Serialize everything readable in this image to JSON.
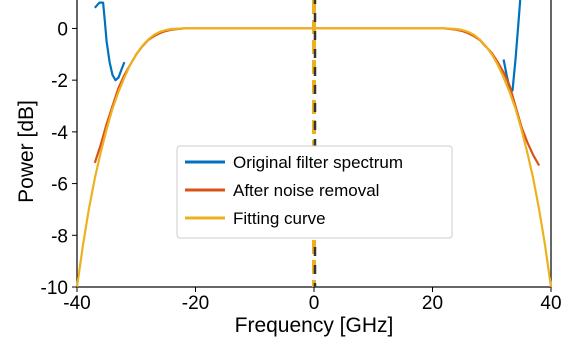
{
  "chart_data": {
    "type": "line",
    "title": "",
    "xlabel": "Frequency [GHz]",
    "ylabel": "Power [dB]",
    "xlim": [
      -40,
      40
    ],
    "ylim": [
      -10,
      1.1
    ],
    "xticks": [
      -40,
      -20,
      0,
      20,
      40
    ],
    "xtick_labels": [
      "-40",
      "-20",
      "0",
      "20",
      "40"
    ],
    "yticks": [
      0,
      -2,
      -4,
      -6,
      -8,
      -10
    ],
    "ytick_labels": [
      "0",
      "-2",
      "-4",
      "-6",
      "-8",
      "-10"
    ],
    "grid": false,
    "legend_position": "center",
    "annotations": [
      {
        "type": "vertical-dashed-line",
        "x": 0,
        "colors": [
          "#EDB120",
          "#333333"
        ]
      }
    ],
    "series": [
      {
        "name": "Original filter spectrum",
        "color": "#0072BD",
        "x": [
          -37.0,
          -36.6,
          -36.2,
          -35.6,
          -35.3,
          -35.0,
          -34.5,
          -34.0,
          -33.5,
          -33.0,
          -32.5,
          -32.0
        ],
        "y": [
          0.8,
          0.9,
          1.0,
          1.0,
          0.3,
          -0.5,
          -1.3,
          -1.8,
          -2.0,
          -1.9,
          -1.6,
          -1.3
        ],
        "x2": [
          32.0,
          32.5,
          33.0,
          33.5,
          34.0,
          34.5,
          34.8
        ],
        "y2": [
          -1.2,
          -1.8,
          -2.3,
          -2.4,
          -1.2,
          0.2,
          1.1
        ]
      },
      {
        "name": "After noise removal",
        "color": "#D95319",
        "x": [
          -37.0,
          -36.0,
          -35.0,
          -34.0,
          -33.0,
          -32.0,
          -31.0,
          -30.0,
          -29.0,
          -28.0,
          -27.0,
          -26.0,
          -25.0,
          -24.0,
          -22.0,
          -20.0,
          0.0,
          20.0,
          22.0,
          24.0,
          25.0,
          26.0,
          27.0,
          28.0,
          29.0,
          30.0,
          31.0,
          32.0,
          33.0,
          34.0,
          35.0,
          36.0,
          37.0,
          38.0
        ],
        "y": [
          -5.2,
          -4.5,
          -3.7,
          -3.0,
          -2.3,
          -1.8,
          -1.4,
          -1.0,
          -0.7,
          -0.45,
          -0.3,
          -0.18,
          -0.1,
          -0.05,
          0.0,
          0.0,
          0.0,
          0.0,
          0.0,
          -0.05,
          -0.1,
          -0.18,
          -0.3,
          -0.45,
          -0.7,
          -0.95,
          -1.3,
          -1.7,
          -2.2,
          -3.0,
          -3.8,
          -4.4,
          -4.9,
          -5.3
        ]
      },
      {
        "name": "Fitting curve",
        "color": "#EDB120",
        "x": [
          -40.0,
          -39.0,
          -38.0,
          -37.0,
          -36.0,
          -35.0,
          -34.0,
          -33.0,
          -32.0,
          -31.0,
          -30.0,
          -29.0,
          -28.0,
          -27.0,
          -26.0,
          -25.0,
          -24.0,
          -22.0,
          -20.0,
          0.0,
          20.0,
          22.0,
          24.0,
          25.0,
          26.0,
          27.0,
          28.0,
          29.0,
          30.0,
          31.0,
          32.0,
          33.0,
          34.0,
          35.0,
          36.0,
          37.0,
          38.0,
          39.0,
          40.0
        ],
        "y": [
          -10.0,
          -8.4,
          -7.0,
          -5.8,
          -4.8,
          -3.9,
          -3.1,
          -2.45,
          -1.9,
          -1.4,
          -1.0,
          -0.68,
          -0.43,
          -0.25,
          -0.13,
          -0.06,
          -0.02,
          0.0,
          0.0,
          0.0,
          0.0,
          0.0,
          -0.02,
          -0.06,
          -0.13,
          -0.25,
          -0.43,
          -0.68,
          -1.0,
          -1.4,
          -1.9,
          -2.45,
          -3.1,
          -3.9,
          -4.8,
          -5.8,
          -7.0,
          -8.4,
          -10.0
        ]
      }
    ]
  }
}
